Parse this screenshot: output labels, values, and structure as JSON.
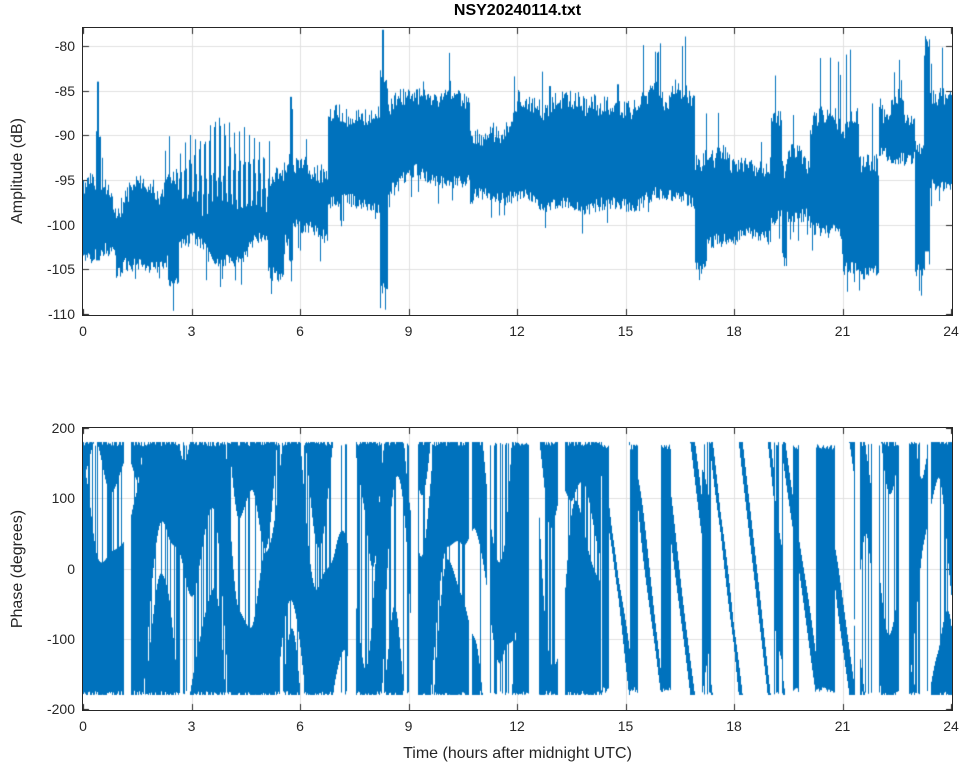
{
  "title": "NSY20240114.txt",
  "colors": {
    "line": "#0072BD",
    "axis": "#262626",
    "grid": "#e0e0e0",
    "tick_label": "#262626",
    "background": "#ffffff"
  },
  "chart_data": [
    {
      "type": "line",
      "title": "NSY20240114.txt",
      "ylabel": "Amplitude (dB)",
      "xlabel": "",
      "series_name": "amplitude",
      "xlim": [
        0,
        24
      ],
      "ylim": [
        -110,
        -78
      ],
      "xticks": [
        0,
        3,
        6,
        9,
        12,
        15,
        18,
        21,
        24
      ],
      "yticks": [
        -110,
        -105,
        -100,
        -95,
        -90,
        -85,
        -80
      ],
      "grid": true,
      "legend": "none",
      "signal_summary": "Dense noisy received-signal amplitude over 24 h. Baseline near -100 dB (0-2.5 h), periodic comb bursts -103..-88.5 dB (2.65-5.1 h), step to ~-92 dB (6.75-8.2 h), large spike to -78 dB at 8.3 h, elevated plateau -95..-86 dB (8.4-16.9 h) with upper spikes to -84 dB, drop back to ~-97 dB (17-21.4 h), quiet dip -106..-94 dB (21.45-22 h), flat block -92.5..-87 dB (22-23 h), spike to -79.5 dB at 23.33 h, then -96..-87 dB to 24 h.",
      "envelope_segments": [
        [
          0.0,
          0.35,
          -103.5,
          -96.0,
          "n",
          0.04,
          0.04
        ],
        [
          0.35,
          0.48,
          -104.0,
          -90.5,
          "n",
          0.06,
          0.06
        ],
        [
          0.48,
          0.9,
          -103.5,
          -96.5,
          "n",
          0.04,
          0.04
        ],
        [
          0.9,
          1.1,
          -105.5,
          -97.0,
          "n",
          0.03,
          0.06
        ],
        [
          1.1,
          2.35,
          -104.0,
          -96.0,
          "n",
          0.04,
          0.05
        ],
        [
          2.35,
          2.65,
          -106.5,
          -95.5,
          "n",
          0.03,
          0.1
        ],
        [
          2.65,
          5.1,
          -103.0,
          -88.5,
          "c",
          0.03,
          0.05
        ],
        [
          5.1,
          5.55,
          -106.0,
          -95.0,
          "n",
          0.03,
          0.1
        ],
        [
          5.55,
          5.72,
          -102.0,
          -94.0,
          "n",
          0.05,
          0.04
        ],
        [
          5.72,
          5.8,
          -104.0,
          -88.0,
          "n",
          0.1,
          0.08
        ],
        [
          5.8,
          6.75,
          -100.5,
          -93.5,
          "n",
          0.04,
          0.04
        ],
        [
          6.75,
          8.2,
          -97.0,
          -87.5,
          "n",
          0.05,
          0.04
        ],
        [
          8.2,
          8.42,
          -106.0,
          -84.0,
          "n",
          0.1,
          0.1
        ],
        [
          8.42,
          10.7,
          -95.0,
          -86.0,
          "n",
          0.05,
          0.04
        ],
        [
          10.7,
          12.0,
          -97.5,
          -89.5,
          "n",
          0.04,
          0.04
        ],
        [
          12.0,
          14.0,
          -97.5,
          -87.0,
          "n",
          0.06,
          0.04
        ],
        [
          14.0,
          16.9,
          -97.0,
          -86.0,
          "n",
          0.09,
          0.04
        ],
        [
          16.9,
          17.25,
          -104.0,
          -92.0,
          "n",
          0.04,
          0.1
        ],
        [
          17.25,
          18.15,
          -101.5,
          -93.0,
          "n",
          0.04,
          0.05
        ],
        [
          18.15,
          19.0,
          -101.0,
          -93.5,
          "n",
          0.04,
          0.05
        ],
        [
          19.0,
          19.3,
          -99.0,
          -89.0,
          "n",
          0.07,
          0.04
        ],
        [
          19.3,
          19.45,
          -104.0,
          -95.0,
          "n",
          0.03,
          0.08
        ],
        [
          19.45,
          20.1,
          -99.5,
          -93.0,
          "n",
          0.04,
          0.04
        ],
        [
          20.1,
          21.0,
          -101.0,
          -88.5,
          "n",
          0.1,
          0.08
        ],
        [
          21.0,
          21.45,
          -105.0,
          -89.0,
          "n",
          0.06,
          0.12
        ],
        [
          21.45,
          22.0,
          -106.0,
          -94.0,
          "n",
          0.03,
          0.12
        ],
        [
          22.0,
          23.0,
          -92.5,
          -87.0,
          "n",
          0.05,
          0.03
        ],
        [
          23.0,
          23.25,
          -105.0,
          -91.0,
          "n",
          0.03,
          0.1
        ],
        [
          23.25,
          23.4,
          -103.0,
          -80.5,
          "n",
          0.1,
          0.1
        ],
        [
          23.4,
          24.0,
          -96.0,
          -87.0,
          "n",
          0.05,
          0.06
        ]
      ],
      "spikes": [
        [
          0.42,
          -84.0
        ],
        [
          5.75,
          -85.7
        ],
        [
          8.3,
          -78.2
        ],
        [
          12.9,
          -84.5
        ],
        [
          14.8,
          -84.3
        ],
        [
          15.9,
          -84.2
        ],
        [
          19.1,
          -88.0
        ],
        [
          23.33,
          -79.5
        ]
      ]
    },
    {
      "type": "line",
      "title": "",
      "ylabel": "Phase (degrees)",
      "xlabel": "Time (hours after midnight UTC)",
      "series_name": "phase",
      "xlim": [
        0,
        24
      ],
      "ylim": [
        -200,
        200
      ],
      "xticks": [
        0,
        3,
        6,
        9,
        12,
        15,
        18,
        21,
        24
      ],
      "yticks": [
        -200,
        -100,
        0,
        100,
        200
      ],
      "grid": true,
      "legend": "none",
      "signal_summary": "Wrapped phase in [-180, 180] degrees. Mostly dense rapidly wrapping noise spanning the full range with narrow white gaps (0-14.3 h and 21.3-24 h). Between about 14.3 h and 21.3 h the phase shows coherent descending sawtooth ramps (+180 down to -180, period roughly 0.8-0.95 h) separated by bursts of full-range wrapping noise.",
      "phase_segments": [
        [
          0.0,
          14.3,
          "chaotic",
          0
        ],
        [
          14.3,
          17.1,
          "ramps",
          0.85
        ],
        [
          17.1,
          17.35,
          "chaotic",
          0
        ],
        [
          17.35,
          19.1,
          "ramps",
          0.8
        ],
        [
          19.1,
          19.35,
          "chaotic",
          0
        ],
        [
          19.35,
          21.3,
          "ramps",
          0.95
        ],
        [
          21.3,
          24.0,
          "chaotic",
          0
        ]
      ]
    }
  ]
}
